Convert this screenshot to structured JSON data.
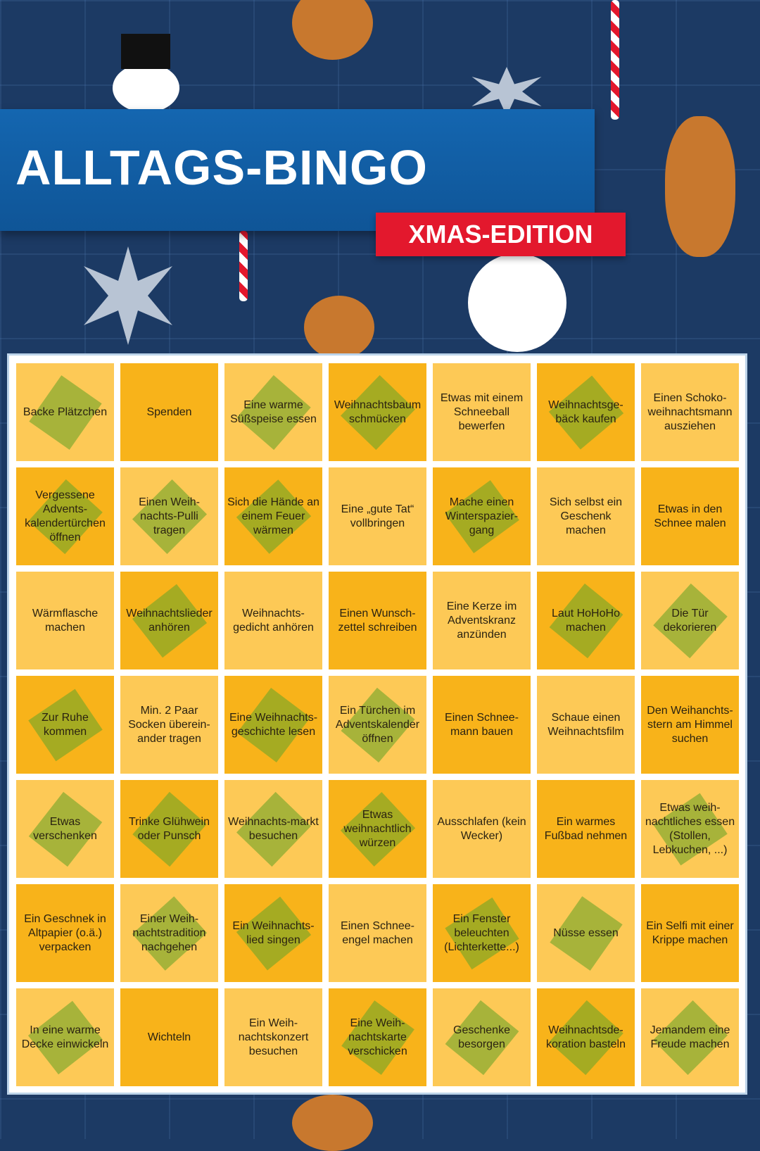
{
  "header": {
    "title": "ALLTAGS-BINGO",
    "edition": "XMAS-EDITION"
  },
  "colors": {
    "background": "#1c3a64",
    "banner": "#1466b0",
    "edition": "#e3182d",
    "cell_light": "#fdc956",
    "cell_dark": "#f8b31a",
    "mark": "#6ea528"
  },
  "board": {
    "rows": [
      [
        {
          "t": "Backe Plätzchen",
          "m": true
        },
        {
          "t": "Spenden",
          "m": false
        },
        {
          "t": "Eine warme Süßspeise essen",
          "m": true
        },
        {
          "t": "Weihnachtsbaum schmücken",
          "m": true
        },
        {
          "t": "Etwas mit einem Schneeball bewerfen",
          "m": false
        },
        {
          "t": "Weihnachtsge-bäck kaufen",
          "m": true
        },
        {
          "t": "Einen Schoko-weihnachtsmann ausziehen",
          "m": false
        }
      ],
      [
        {
          "t": "Vergessene Advents-kalendertürchen öffnen",
          "m": true
        },
        {
          "t": "Einen Weih-nachts-Pulli tragen",
          "m": true
        },
        {
          "t": "Sich die Hände an einem Feuer wärmen",
          "m": true
        },
        {
          "t": "Eine „gute Tat“ vollbringen",
          "m": false
        },
        {
          "t": "Mache einen Winterspazier-gang",
          "m": true
        },
        {
          "t": "Sich selbst ein Geschenk machen",
          "m": false
        },
        {
          "t": "Etwas in den Schnee malen",
          "m": false
        }
      ],
      [
        {
          "t": "Wärmflasche machen",
          "m": false
        },
        {
          "t": "Weihnachtslieder anhören",
          "m": true
        },
        {
          "t": "Weihnachts-gedicht anhören",
          "m": false
        },
        {
          "t": "Einen Wunsch-zettel schreiben",
          "m": false
        },
        {
          "t": "Eine Kerze im Adventskranz anzünden",
          "m": false
        },
        {
          "t": "Laut HoHoHo machen",
          "m": true
        },
        {
          "t": "Die Tür dekorieren",
          "m": true
        }
      ],
      [
        {
          "t": "Zur Ruhe kommen",
          "m": true
        },
        {
          "t": "Min. 2 Paar Socken überein-ander tragen",
          "m": false
        },
        {
          "t": "Eine Weihnachts-geschichte lesen",
          "m": true
        },
        {
          "t": "Ein Türchen im Adventskalender öffnen",
          "m": true
        },
        {
          "t": "Einen Schnee-mann bauen",
          "m": false
        },
        {
          "t": "Schaue einen Weihnachtsfilm",
          "m": false
        },
        {
          "t": "Den Weihanchts-stern am Himmel suchen",
          "m": false
        }
      ],
      [
        {
          "t": "Etwas verschenken",
          "m": true
        },
        {
          "t": "Trinke Glühwein oder Punsch",
          "m": true
        },
        {
          "t": "Weihnachts-markt besuchen",
          "m": true
        },
        {
          "t": "Etwas weihnachtlich würzen",
          "m": true
        },
        {
          "t": "Ausschlafen (kein Wecker)",
          "m": false
        },
        {
          "t": "Ein warmes Fußbad nehmen",
          "m": false
        },
        {
          "t": "Etwas weih-nachtliches essen (Stollen, Lebkuchen, ...)",
          "m": true
        }
      ],
      [
        {
          "t": "Ein Geschnek in Altpapier (o.ä.) verpacken",
          "m": false
        },
        {
          "t": "Einer Weih-nachtstradition nachgehen",
          "m": true
        },
        {
          "t": "Ein Weihnachts-lied singen",
          "m": true
        },
        {
          "t": "Einen Schnee-engel machen",
          "m": false
        },
        {
          "t": "Ein Fenster beleuchten (Lichterkette...)",
          "m": true
        },
        {
          "t": "Nüsse essen",
          "m": true
        },
        {
          "t": "Ein Selfi mit einer Krippe machen",
          "m": false
        }
      ],
      [
        {
          "t": "In eine warme Decke einwickeln",
          "m": true
        },
        {
          "t": "Wichteln",
          "m": false
        },
        {
          "t": "Ein Weih-nachtskonzert besuchen",
          "m": false
        },
        {
          "t": "Eine Weih-nachtskarte verschicken",
          "m": true
        },
        {
          "t": "Geschenke besorgen",
          "m": true
        },
        {
          "t": "Weihnachtsde-koration basteln",
          "m": true
        },
        {
          "t": "Jemandem eine Freude machen",
          "m": true
        }
      ]
    ]
  }
}
